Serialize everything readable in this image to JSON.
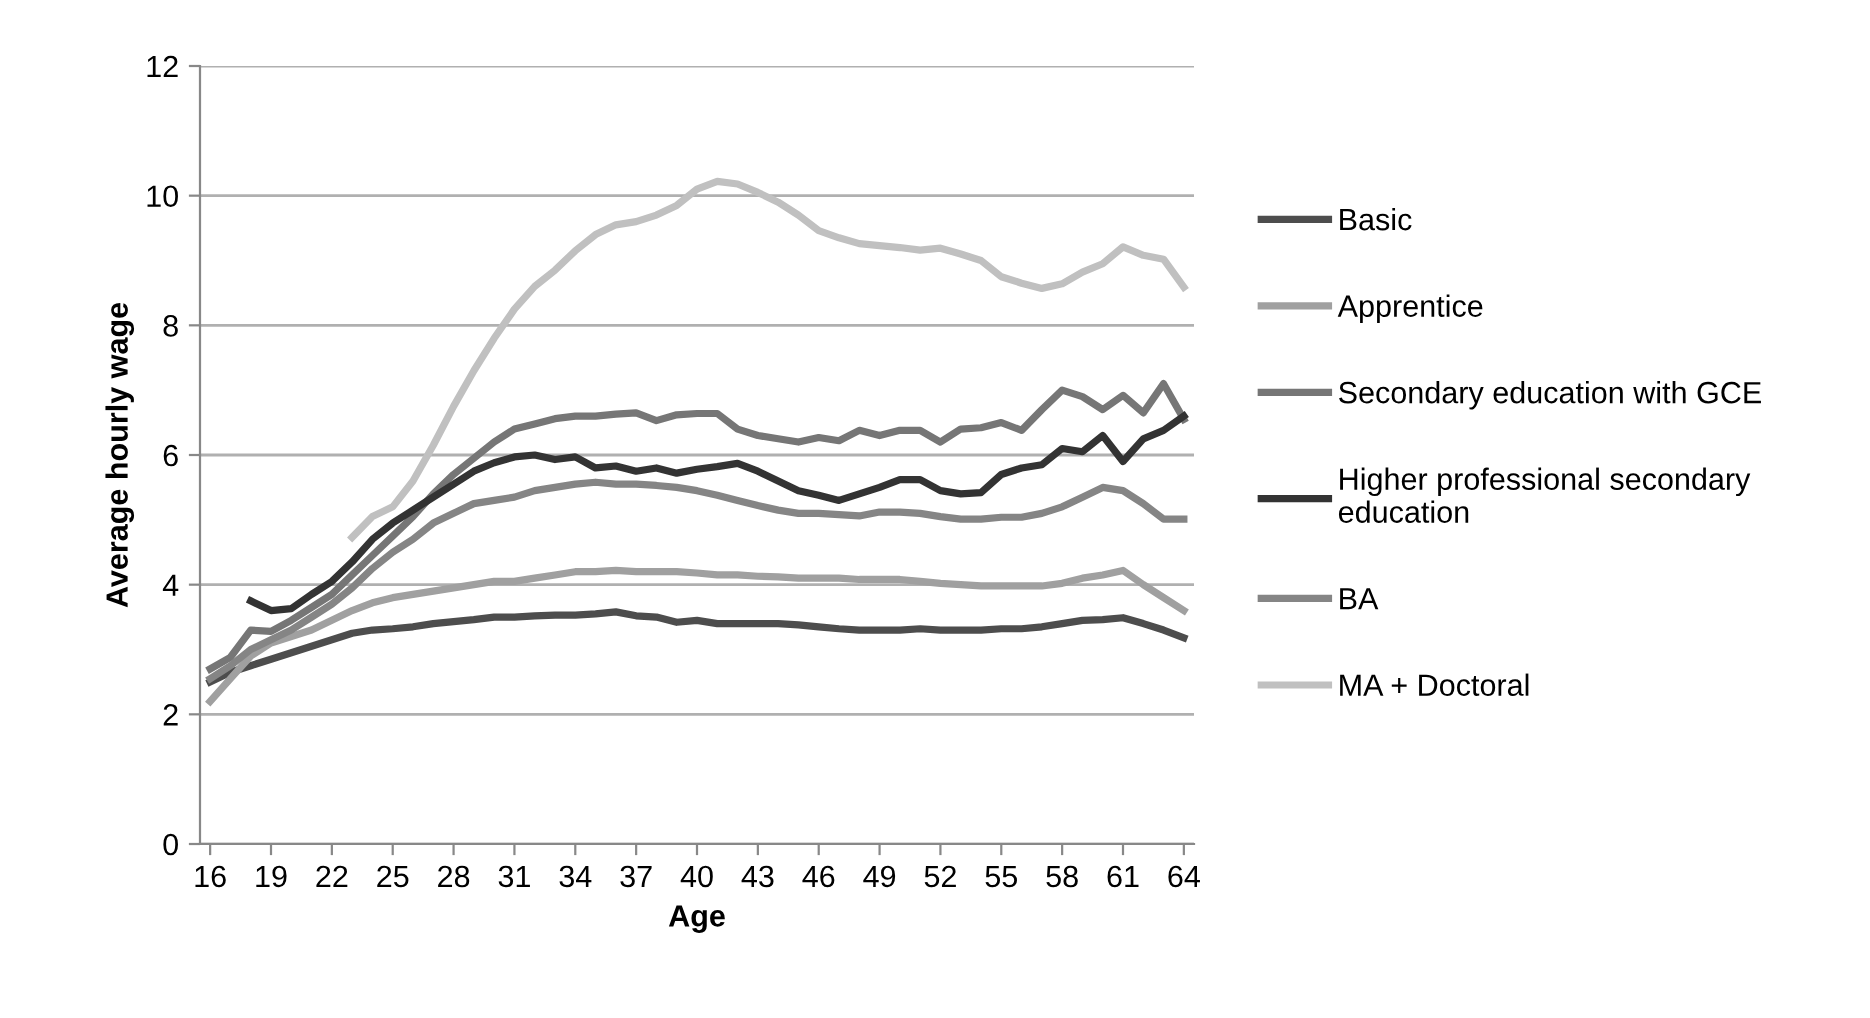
{
  "chart_data": {
    "type": "line",
    "xlabel": "Age",
    "ylabel": "Average hourly wage",
    "x": [
      16,
      17,
      18,
      19,
      20,
      21,
      22,
      23,
      24,
      25,
      26,
      27,
      28,
      29,
      30,
      31,
      32,
      33,
      34,
      35,
      36,
      37,
      38,
      39,
      40,
      41,
      42,
      43,
      44,
      45,
      46,
      47,
      48,
      49,
      50,
      51,
      52,
      53,
      54,
      55,
      56,
      57,
      58,
      59,
      60,
      61,
      62,
      63,
      64
    ],
    "xlim": [
      15.5,
      64.5
    ],
    "xticks": [
      16,
      19,
      22,
      25,
      28,
      31,
      34,
      37,
      40,
      43,
      46,
      49,
      52,
      55,
      58,
      61,
      64
    ],
    "ylim": [
      0,
      12
    ],
    "yticks": [
      0,
      2,
      4,
      6,
      8,
      10,
      12
    ],
    "grid": "y",
    "legend": "right",
    "marker": "none",
    "line_style": "solid",
    "series": [
      {
        "name": "Basic",
        "color": "#4d4d4d",
        "values": [
          2.5,
          2.65,
          2.75,
          2.85,
          2.95,
          3.05,
          3.15,
          3.25,
          3.3,
          3.32,
          3.35,
          3.4,
          3.43,
          3.46,
          3.5,
          3.5,
          3.52,
          3.53,
          3.53,
          3.55,
          3.58,
          3.52,
          3.5,
          3.42,
          3.45,
          3.4,
          3.4,
          3.4,
          3.4,
          3.38,
          3.35,
          3.32,
          3.3,
          3.3,
          3.3,
          3.32,
          3.3,
          3.3,
          3.3,
          3.32,
          3.32,
          3.35,
          3.4,
          3.45,
          3.46,
          3.49,
          3.4,
          3.3,
          3.18
        ]
      },
      {
        "name": "Apprentice",
        "color": "#a0a0a0",
        "values": [
          2.2,
          2.55,
          2.9,
          3.1,
          3.2,
          3.3,
          3.45,
          3.6,
          3.72,
          3.8,
          3.85,
          3.9,
          3.95,
          4.0,
          4.05,
          4.05,
          4.1,
          4.15,
          4.2,
          4.2,
          4.22,
          4.2,
          4.2,
          4.2,
          4.18,
          4.15,
          4.15,
          4.13,
          4.12,
          4.1,
          4.1,
          4.1,
          4.08,
          4.08,
          4.08,
          4.05,
          4.02,
          4.0,
          3.98,
          3.98,
          3.98,
          3.98,
          4.02,
          4.1,
          4.15,
          4.22,
          4.0,
          3.8,
          3.6
        ]
      },
      {
        "name": "Secondary education with GCE",
        "color": "#767676",
        "values": [
          2.7,
          2.88,
          3.3,
          3.28,
          3.45,
          3.65,
          3.85,
          4.15,
          4.45,
          4.75,
          5.05,
          5.4,
          5.7,
          5.95,
          6.2,
          6.4,
          6.48,
          6.56,
          6.6,
          6.6,
          6.63,
          6.65,
          6.53,
          6.62,
          6.64,
          6.64,
          6.4,
          6.3,
          6.25,
          6.2,
          6.27,
          6.22,
          6.38,
          6.3,
          6.38,
          6.38,
          6.2,
          6.4,
          6.42,
          6.5,
          6.38,
          6.7,
          7.0,
          6.9,
          6.7,
          6.92,
          6.65,
          7.1,
          6.55
        ]
      },
      {
        "name": "Higher professional secondary education",
        "color": "#333333",
        "values": [
          null,
          null,
          3.75,
          3.6,
          3.63,
          3.85,
          4.05,
          4.35,
          4.7,
          4.95,
          5.15,
          5.35,
          5.55,
          5.75,
          5.88,
          5.97,
          6.0,
          5.93,
          5.97,
          5.8,
          5.83,
          5.75,
          5.8,
          5.72,
          5.78,
          5.82,
          5.87,
          5.75,
          5.6,
          5.45,
          5.38,
          5.3,
          5.4,
          5.5,
          5.62,
          5.62,
          5.45,
          5.4,
          5.42,
          5.7,
          5.8,
          5.85,
          6.1,
          6.05,
          6.3,
          5.9,
          6.25,
          6.38,
          6.6
        ]
      },
      {
        "name": "BA",
        "color": "#858585",
        "values": [
          2.55,
          2.75,
          3.0,
          3.15,
          3.3,
          3.5,
          3.7,
          3.95,
          4.25,
          4.5,
          4.7,
          4.95,
          5.1,
          5.25,
          5.3,
          5.35,
          5.45,
          5.5,
          5.55,
          5.58,
          5.55,
          5.55,
          5.53,
          5.5,
          5.45,
          5.38,
          5.3,
          5.22,
          5.15,
          5.1,
          5.1,
          5.08,
          5.06,
          5.12,
          5.12,
          5.1,
          5.05,
          5.01,
          5.01,
          5.04,
          5.04,
          5.1,
          5.2,
          5.35,
          5.5,
          5.45,
          5.25,
          5.01,
          5.01
        ]
      },
      {
        "name": "MA + Doctoral",
        "color": "#c0c0c0",
        "values": [
          null,
          null,
          null,
          null,
          null,
          null,
          null,
          4.73,
          5.05,
          5.2,
          5.6,
          6.15,
          6.75,
          7.3,
          7.8,
          8.25,
          8.6,
          8.85,
          9.15,
          9.4,
          9.55,
          9.6,
          9.7,
          9.85,
          10.1,
          10.22,
          10.18,
          10.05,
          9.9,
          9.7,
          9.46,
          9.35,
          9.26,
          9.23,
          9.2,
          9.16,
          9.19,
          9.1,
          9.0,
          8.75,
          8.65,
          8.57,
          8.64,
          8.82,
          8.95,
          9.21,
          9.08,
          9.02,
          8.59
        ]
      }
    ]
  }
}
